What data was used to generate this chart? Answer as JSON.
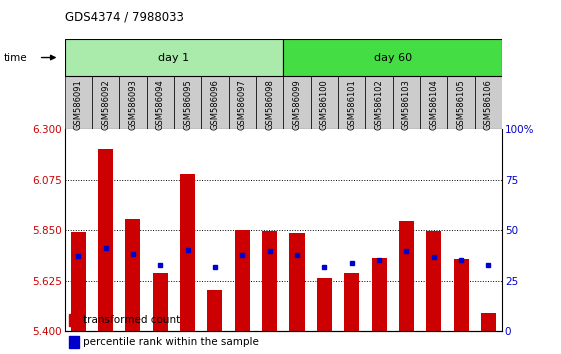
{
  "title": "GDS4374 / 7988033",
  "samples": [
    "GSM586091",
    "GSM586092",
    "GSM586093",
    "GSM586094",
    "GSM586095",
    "GSM586096",
    "GSM586097",
    "GSM586098",
    "GSM586099",
    "GSM586100",
    "GSM586101",
    "GSM586102",
    "GSM586103",
    "GSM586104",
    "GSM586105",
    "GSM586106"
  ],
  "red_values": [
    5.84,
    6.21,
    5.9,
    5.66,
    6.1,
    5.585,
    5.85,
    5.845,
    5.835,
    5.635,
    5.66,
    5.725,
    5.89,
    5.845,
    5.72,
    5.48
  ],
  "blue_values": [
    5.735,
    5.77,
    5.745,
    5.695,
    5.76,
    5.685,
    5.74,
    5.755,
    5.74,
    5.685,
    5.705,
    5.715,
    5.755,
    5.73,
    5.715,
    5.695
  ],
  "day1_samples": 8,
  "day60_samples": 8,
  "ylim_left": [
    5.4,
    6.3
  ],
  "ylim_right": [
    0,
    100
  ],
  "yticks_left": [
    5.4,
    5.625,
    5.85,
    6.075,
    6.3
  ],
  "yticks_right": [
    0,
    25,
    50,
    75,
    100
  ],
  "bar_color": "#cc0000",
  "blue_color": "#0000cc",
  "bg_day1": "#aaeaaa",
  "bg_day60": "#44dd44",
  "bg_xtick": "#cccccc",
  "bar_width": 0.55
}
